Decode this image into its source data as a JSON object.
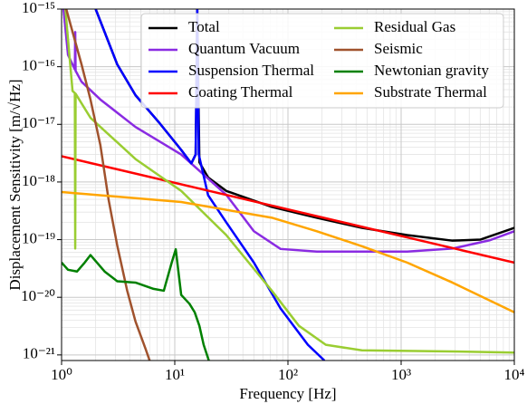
{
  "chart_data": {
    "type": "line",
    "xlabel": "Frequency [Hz]",
    "ylabel": "Displacement Sensitivity [m/√Hz]",
    "xscale": "log",
    "yscale": "log",
    "grid": true,
    "legend": "upper right",
    "xlim": [
      1,
      10000
    ],
    "ylim": [
      8e-22,
      1e-15
    ],
    "xticks": [
      {
        "value": 1,
        "label": "10⁰"
      },
      {
        "value": 10,
        "label": "10¹"
      },
      {
        "value": 100,
        "label": "10²"
      },
      {
        "value": 1000,
        "label": "10³"
      },
      {
        "value": 10000,
        "label": "10⁴"
      }
    ],
    "yticks": [
      {
        "value": 1e-21,
        "label": "10⁻²¹"
      },
      {
        "value": 1e-20,
        "label": "10⁻²⁰"
      },
      {
        "value": 1e-19,
        "label": "10⁻¹⁹"
      },
      {
        "value": 1e-18,
        "label": "10⁻¹⁸"
      },
      {
        "value": 1e-17,
        "label": "10⁻¹⁷"
      },
      {
        "value": 1e-16,
        "label": "10⁻¹⁶"
      },
      {
        "value": 1e-15,
        "label": "10⁻¹⁵"
      }
    ],
    "series": [
      {
        "name": "Total",
        "color": "#000000",
        "x": [
          2,
          3.1,
          4.5,
          7.2,
          11.4,
          14,
          15.3,
          15.8,
          16.5,
          19.7,
          28.5,
          72,
          180,
          450,
          1130,
          2840,
          5000,
          10000
        ],
        "values": [
          1e-15,
          1.1e-16,
          3.2e-17,
          1.1e-17,
          3.6e-18,
          2.1e-18,
          3e-18,
          1e-15,
          2.2e-18,
          1.2e-18,
          7e-19,
          3.7e-19,
          2.4e-19,
          1.6e-19,
          1.2e-19,
          9.6e-20,
          1e-19,
          1.6e-19
        ]
      },
      {
        "name": "Quantum Vacuum",
        "color": "#8a2be2",
        "x": [
          1.04,
          1.14,
          1.31,
          1.32,
          1.33,
          1.5,
          2.2,
          4.5,
          11.4,
          28.5,
          50,
          86,
          180,
          1130,
          2840,
          6000,
          10000
        ],
        "values": [
          1e-15,
          1.6e-16,
          9e-17,
          4e-16,
          8.5e-17,
          5.5e-17,
          2.7e-17,
          9e-18,
          3e-18,
          6e-19,
          1.4e-19,
          6.9e-20,
          6.2e-20,
          6.2e-20,
          7e-20,
          9.7e-20,
          1.4e-19
        ]
      },
      {
        "name": "Suspension Thermal",
        "color": "#0000ff",
        "x": [
          2,
          3.1,
          4.5,
          7.2,
          11.4,
          14,
          15.3,
          15.8,
          16.3,
          19.7,
          28.5,
          50,
          86,
          150,
          210
        ],
        "values": [
          1e-15,
          1.1e-16,
          3.2e-17,
          1.1e-17,
          3.6e-18,
          2.1e-18,
          3e-18,
          1e-15,
          3e-18,
          5.9e-19,
          2e-19,
          4e-20,
          6.4e-21,
          1.5e-21,
          8e-22
        ]
      },
      {
        "name": "Coating Thermal",
        "color": "#ff0000",
        "x": [
          1,
          10000
        ],
        "values": [
          2.8e-18,
          4e-20
        ]
      },
      {
        "name": "Residual Gas",
        "color": "#9acd32",
        "x": [
          1.08,
          1.25,
          1.31,
          1.32,
          1.33,
          1.8,
          4.5,
          11.4,
          28.5,
          72,
          125,
          216,
          450,
          2840,
          10000
        ],
        "values": [
          1e-15,
          3.8e-17,
          3.5e-17,
          7e-20,
          3.4e-17,
          1.3e-17,
          2.5e-18,
          7e-19,
          1.2e-19,
          1.3e-20,
          3.2e-21,
          1.5e-21,
          1.2e-21,
          1.15e-21,
          1.1e-21
        ]
      },
      {
        "name": "Seismic",
        "color": "#a0522d",
        "x": [
          1.1,
          1.5,
          1.8,
          2.2,
          2.6,
          3.1,
          3.8,
          4.5,
          5.5,
          6
        ],
        "values": [
          1e-15,
          1.1e-16,
          2.7e-17,
          4.4e-18,
          5e-19,
          8e-20,
          1.3e-20,
          3.8e-21,
          1.3e-21,
          8e-22
        ]
      },
      {
        "name": "Newtonian gravity",
        "color": "#008000",
        "x": [
          1,
          1.14,
          1.37,
          1.6,
          1.8,
          2.4,
          3.1,
          4.5,
          6.5,
          8,
          9.4,
          10.2,
          11.4,
          13.5,
          15,
          16.5,
          18,
          20
        ],
        "values": [
          4e-20,
          3e-20,
          2.8e-20,
          4e-20,
          5.4e-20,
          2.8e-20,
          1.9e-20,
          1.8e-20,
          1.4e-20,
          1.3e-20,
          4e-20,
          6.8e-20,
          1.1e-20,
          7.7e-21,
          5.5e-21,
          3.2e-21,
          1.5e-21,
          8e-22
        ]
      },
      {
        "name": "Substrate Thermal",
        "color": "#ffa500",
        "x": [
          1,
          11.4,
          72,
          180,
          450,
          1130,
          2840,
          10000
        ],
        "values": [
          6.7e-19,
          4.5e-19,
          2.4e-19,
          1.4e-19,
          7.7e-20,
          4e-20,
          1.8e-20,
          5.5e-21
        ]
      }
    ]
  }
}
